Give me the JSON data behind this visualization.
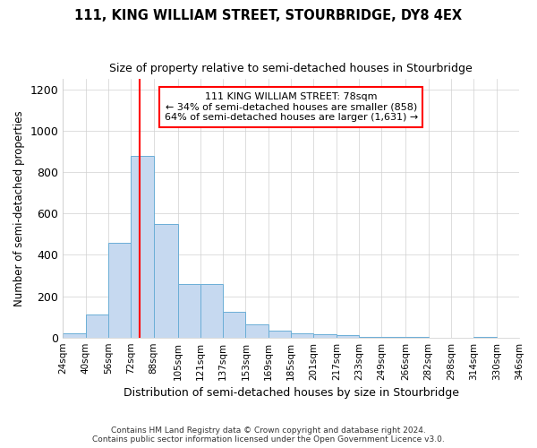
{
  "title": "111, KING WILLIAM STREET, STOURBRIDGE, DY8 4EX",
  "subtitle": "Size of property relative to semi-detached houses in Stourbridge",
  "xlabel": "Distribution of semi-detached houses by size in Stourbridge",
  "ylabel": "Number of semi-detached properties",
  "footer_line1": "Contains HM Land Registry data © Crown copyright and database right 2024.",
  "footer_line2": "Contains public sector information licensed under the Open Government Licence v3.0.",
  "annotation_line1": "111 KING WILLIAM STREET: 78sqm",
  "annotation_line2": "← 34% of semi-detached houses are smaller (858)",
  "annotation_line3": "64% of semi-detached houses are larger (1,631) →",
  "property_size": 78,
  "bar_color": "#c6d9f0",
  "bar_edge_color": "#6baed6",
  "vline_color": "red",
  "annotation_box_color": "red",
  "background_color": "#ffffff",
  "ylim": [
    0,
    1250
  ],
  "yticks": [
    0,
    200,
    400,
    600,
    800,
    1000,
    1200
  ],
  "bins": [
    24,
    40,
    56,
    72,
    88,
    105,
    121,
    137,
    153,
    169,
    185,
    201,
    217,
    233,
    249,
    266,
    282,
    298,
    314,
    330,
    346
  ],
  "bin_labels": [
    "24sqm",
    "40sqm",
    "56sqm",
    "72sqm",
    "88sqm",
    "105sqm",
    "121sqm",
    "137sqm",
    "153sqm",
    "169sqm",
    "185sqm",
    "201sqm",
    "217sqm",
    "233sqm",
    "249sqm",
    "266sqm",
    "282sqm",
    "298sqm",
    "314sqm",
    "330sqm",
    "346sqm"
  ],
  "bar_heights": [
    20,
    110,
    460,
    880,
    550,
    260,
    260,
    125,
    65,
    35,
    20,
    15,
    10,
    5,
    5,
    5,
    0,
    0,
    5,
    0
  ]
}
